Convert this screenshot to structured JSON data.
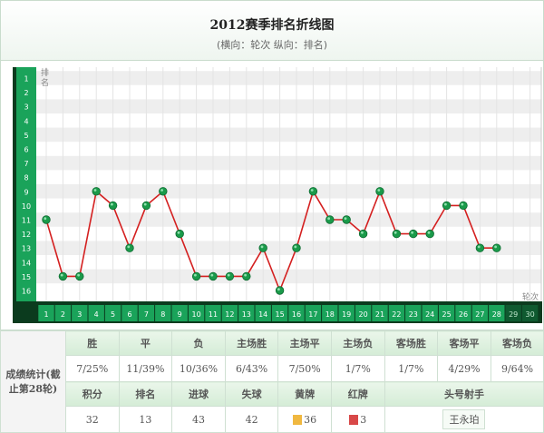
{
  "title": "2012赛季排名折线图",
  "subtitle": "(横向：轮次 纵向：排名)",
  "chart_data": {
    "type": "line",
    "ylabel": "排名",
    "xlabel": "轮次",
    "x": [
      1,
      2,
      3,
      4,
      5,
      6,
      7,
      8,
      9,
      10,
      11,
      12,
      13,
      14,
      15,
      16,
      17,
      18,
      19,
      20,
      21,
      22,
      23,
      24,
      25,
      26,
      27,
      28
    ],
    "x_ticks": [
      1,
      2,
      3,
      4,
      5,
      6,
      7,
      8,
      9,
      10,
      11,
      12,
      13,
      14,
      15,
      16,
      17,
      18,
      19,
      20,
      21,
      22,
      23,
      24,
      25,
      26,
      27,
      28,
      29,
      30
    ],
    "y_ticks": [
      1,
      2,
      3,
      4,
      5,
      6,
      7,
      8,
      9,
      10,
      11,
      12,
      13,
      14,
      15,
      16
    ],
    "values": [
      11,
      15,
      15,
      9,
      10,
      13,
      10,
      9,
      12,
      15,
      15,
      15,
      15,
      13,
      16,
      13,
      9,
      11,
      11,
      12,
      9,
      12,
      12,
      12,
      10,
      10,
      13,
      13
    ],
    "ylim": [
      1,
      16
    ],
    "xlim": [
      1,
      30
    ],
    "y_inverted": true,
    "line_color": "#d42020",
    "marker_color": "#1a9a4a"
  },
  "stats": {
    "label": "成绩统计(截止第28轮)",
    "row1_headers": [
      "胜",
      "平",
      "负",
      "主场胜",
      "主场平",
      "主场负",
      "客场胜",
      "客场平",
      "客场负"
    ],
    "row1_values": [
      "7/25%",
      "11/39%",
      "10/36%",
      "6/43%",
      "7/50%",
      "1/7%",
      "1/7%",
      "4/29%",
      "9/64%"
    ],
    "row2_headers": [
      "积分",
      "排名",
      "进球",
      "失球",
      "黄牌",
      "红牌",
      "头号射手"
    ],
    "row2_values": [
      "32",
      "13",
      "43",
      "42",
      "36",
      "3",
      "王永珀"
    ],
    "yellow_card_color": "#f0b840",
    "red_card_color": "#d84848"
  }
}
